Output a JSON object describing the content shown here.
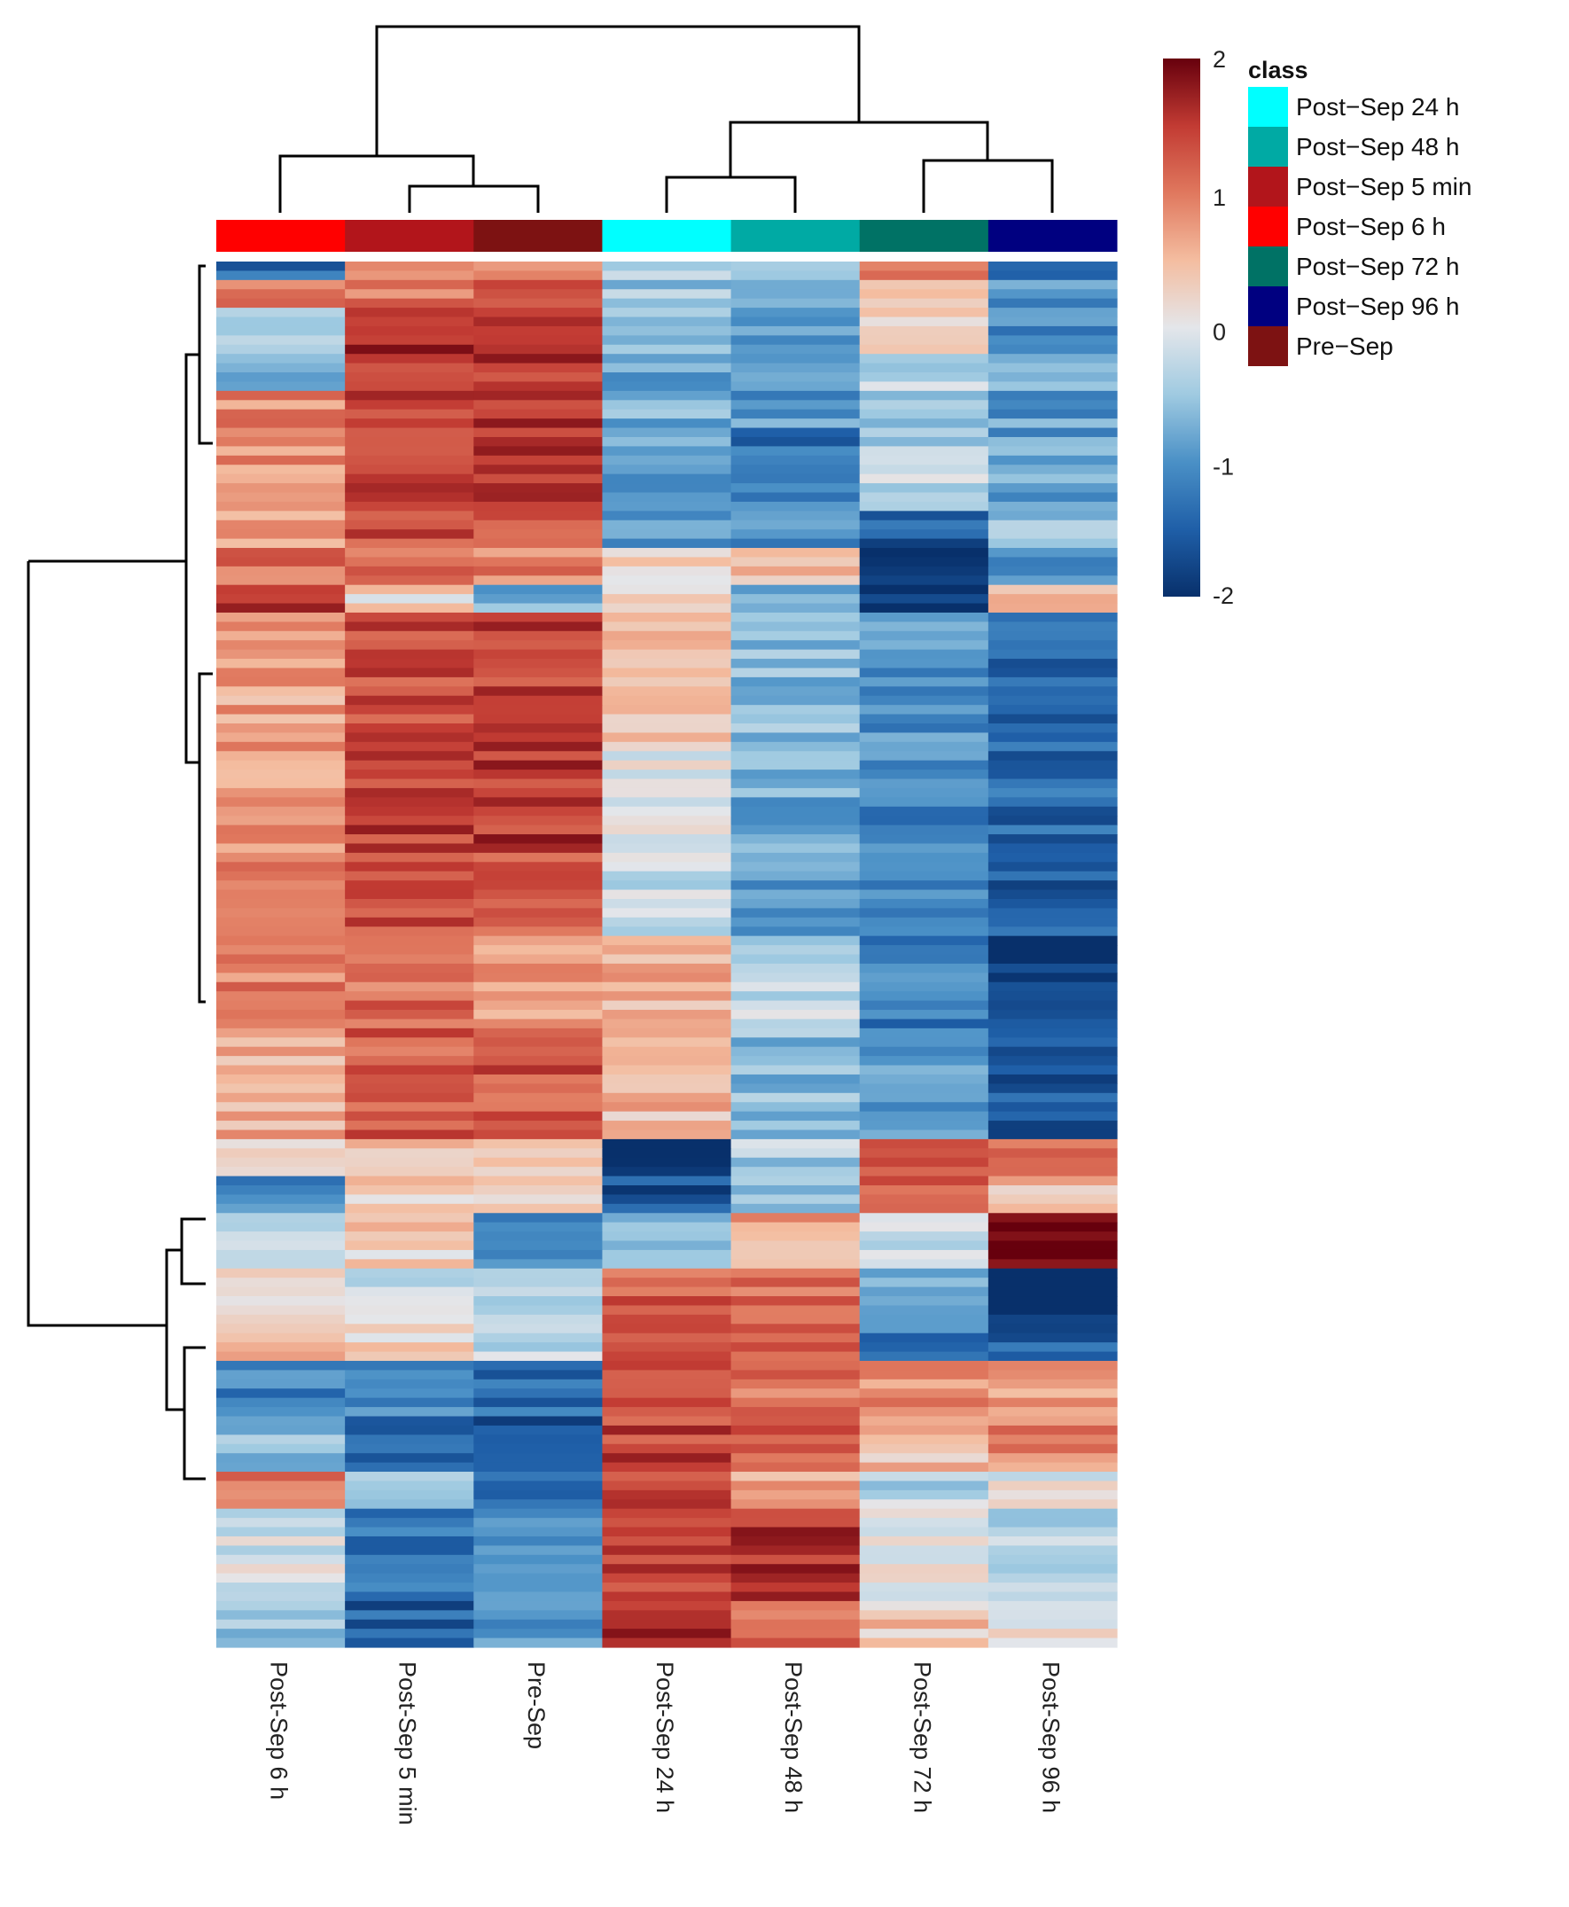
{
  "chart_data": {
    "type": "heatmap",
    "title": "",
    "columns": [
      "Post-Sep 6 h",
      "Post-Sep 5 min",
      "Pre-Sep",
      "Post-Sep 24 h",
      "Post-Sep 48 h",
      "Post-Sep 72 h",
      "Post-Sep 96 h"
    ],
    "column_classes": [
      "Post−Sep 6 h",
      "Post−Sep 5 min",
      "Pre−Sep",
      "Post−Sep 24 h",
      "Post−Sep 48 h",
      "Post−Sep 72 h",
      "Post−Sep 96 h"
    ],
    "color_scale": {
      "min": -2,
      "max": 2,
      "ticks": [
        "2",
        "1",
        "0",
        "-1",
        "-2"
      ],
      "stops": [
        {
          "value": -2,
          "color": "#08306b"
        },
        {
          "value": -1.5,
          "color": "#1f5fa8"
        },
        {
          "value": -1,
          "color": "#4a90c6"
        },
        {
          "value": -0.5,
          "color": "#9fcae1"
        },
        {
          "value": 0,
          "color": "#e4e6ea"
        },
        {
          "value": 0.5,
          "color": "#f4bda0"
        },
        {
          "value": 1,
          "color": "#e0785e"
        },
        {
          "value": 1.5,
          "color": "#c23b33"
        },
        {
          "value": 2,
          "color": "#67000d"
        }
      ]
    },
    "legend": {
      "title": "class",
      "entries": [
        {
          "label": "Post−Sep 24 h",
          "color": "#00ffff"
        },
        {
          "label": "Post−Sep 48 h",
          "color": "#00aaa4"
        },
        {
          "label": "Post−Sep 5 min",
          "color": "#b2151b"
        },
        {
          "label": "Post−Sep 6 h",
          "color": "#ff0000"
        },
        {
          "label": "Post−Sep 72 h",
          "color": "#007265"
        },
        {
          "label": "Post−Sep 96 h",
          "color": "#000080"
        },
        {
          "label": "Pre−Sep",
          "color": "#7d1212"
        }
      ]
    },
    "row_blocks": [
      {
        "rows": 2,
        "values": [
          -1.3,
          0.6,
          0.9,
          -0.3,
          -0.6,
          0.9,
          -1.3
        ]
      },
      {
        "rows": 3,
        "values": [
          0.9,
          1.0,
          1.3,
          -0.5,
          -0.9,
          0.4,
          -1.0
        ]
      },
      {
        "rows": 5,
        "values": [
          -0.2,
          1.6,
          1.6,
          -0.7,
          -1.0,
          0.3,
          -1.1
        ]
      },
      {
        "rows": 4,
        "values": [
          -0.6,
          1.4,
          1.5,
          -0.8,
          -1.1,
          -0.3,
          -0.8
        ]
      },
      {
        "rows": 4,
        "values": [
          0.9,
          1.4,
          1.5,
          -0.7,
          -0.9,
          -0.5,
          -0.9
        ]
      },
      {
        "rows": 4,
        "values": [
          0.8,
          1.1,
          1.5,
          -0.6,
          -1.3,
          -0.4,
          -0.9
        ]
      },
      {
        "rows": 5,
        "values": [
          0.7,
          1.4,
          1.4,
          -0.9,
          -1.1,
          -0.3,
          -0.9
        ]
      },
      {
        "rows": 4,
        "values": [
          0.8,
          1.3,
          1.4,
          -0.9,
          -1.0,
          -1.5,
          -0.6
        ]
      },
      {
        "rows": 4,
        "values": [
          1.0,
          1.1,
          0.9,
          0.3,
          0.4,
          -1.9,
          -0.9
        ]
      },
      {
        "rows": 3,
        "values": [
          1.5,
          0.2,
          -0.7,
          0.1,
          -0.8,
          -1.9,
          0.7
        ]
      },
      {
        "rows": 14,
        "values": [
          0.7,
          1.4,
          1.4,
          0.4,
          -0.6,
          -1.0,
          -1.5
        ]
      },
      {
        "rows": 12,
        "values": [
          0.8,
          1.5,
          1.5,
          0.0,
          -0.8,
          -1.1,
          -1.4
        ]
      },
      {
        "rows": 9,
        "values": [
          0.9,
          1.3,
          1.2,
          -0.2,
          -1.0,
          -1.1,
          -1.5
        ]
      },
      {
        "rows": 10,
        "values": [
          0.9,
          1.1,
          0.8,
          0.6,
          -0.3,
          -1.2,
          -1.8
        ]
      },
      {
        "rows": 12,
        "values": [
          0.6,
          1.2,
          1.3,
          0.5,
          -0.6,
          -1.0,
          -1.6
        ]
      },
      {
        "rows": 4,
        "values": [
          0.2,
          0.5,
          0.5,
          -2.0,
          -0.4,
          1.4,
          0.9
        ]
      },
      {
        "rows": 4,
        "values": [
          -1.0,
          0.3,
          0.3,
          -1.6,
          -0.5,
          1.3,
          0.5
        ]
      },
      {
        "rows": 6,
        "values": [
          -0.3,
          0.3,
          -1.2,
          -0.8,
          0.7,
          -0.3,
          1.9
        ]
      },
      {
        "rows": 5,
        "values": [
          0.2,
          -0.1,
          -0.3,
          1.2,
          1.1,
          -0.8,
          -1.9
        ]
      },
      {
        "rows": 5,
        "values": [
          0.6,
          0.2,
          -0.3,
          1.3,
          1.3,
          -1.2,
          -1.5
        ]
      },
      {
        "rows": 6,
        "values": [
          -1.1,
          -1.0,
          -1.3,
          1.3,
          1.0,
          0.9,
          0.7
        ]
      },
      {
        "rows": 6,
        "values": [
          -0.5,
          -1.3,
          -1.6,
          1.4,
          1.2,
          0.5,
          0.9
        ]
      },
      {
        "rows": 4,
        "values": [
          1.0,
          -0.6,
          -1.2,
          1.3,
          0.6,
          -0.3,
          0.0
        ]
      },
      {
        "rows": 10,
        "values": [
          -0.1,
          -1.3,
          -1.1,
          1.4,
          1.6,
          0.1,
          -0.4
        ]
      },
      {
        "rows": 5,
        "values": [
          -0.6,
          -1.5,
          -1.0,
          1.5,
          1.2,
          0.4,
          0.1
        ]
      }
    ]
  }
}
